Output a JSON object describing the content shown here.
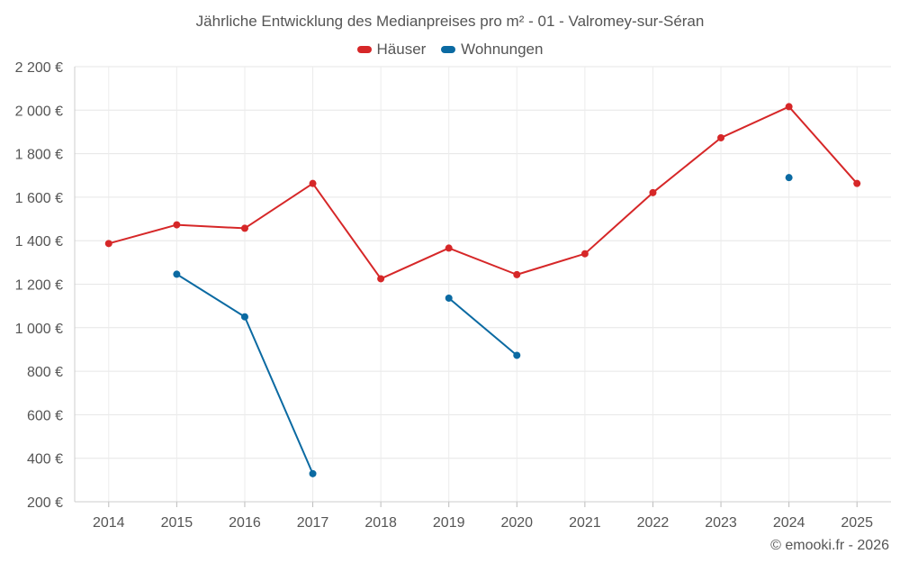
{
  "chart_data": {
    "type": "line",
    "title": "Jährliche Entwicklung des Medianpreises pro m² - 01 - Valromey-sur-Séran",
    "xlabel": "",
    "ylabel": "",
    "categories": [
      "2014",
      "2015",
      "2016",
      "2017",
      "2018",
      "2019",
      "2020",
      "2021",
      "2022",
      "2023",
      "2024",
      "2025"
    ],
    "ylim": [
      200,
      2200
    ],
    "yticks": [
      200,
      400,
      600,
      800,
      1000,
      1200,
      1400,
      1600,
      1800,
      2000,
      2200
    ],
    "ytick_labels": [
      "200 €",
      "400 €",
      "600 €",
      "800 €",
      "1 000 €",
      "1 200 €",
      "1 400 €",
      "1 600 €",
      "1 800 €",
      "2 000 €",
      "2 200 €"
    ],
    "grid": true,
    "legend_position": "top-center",
    "series": [
      {
        "name": "Häuser",
        "color": "#d62728",
        "values": [
          1387,
          1473,
          1457,
          1663,
          1225,
          1366,
          1244,
          1340,
          1621,
          1873,
          2016,
          1663
        ]
      },
      {
        "name": "Wohnungen",
        "color": "#0b6aa2",
        "values": [
          null,
          1246,
          1050,
          329,
          null,
          1136,
          873,
          null,
          null,
          null,
          1690,
          null
        ]
      }
    ]
  },
  "credit": "© emooki.fr - 2026"
}
